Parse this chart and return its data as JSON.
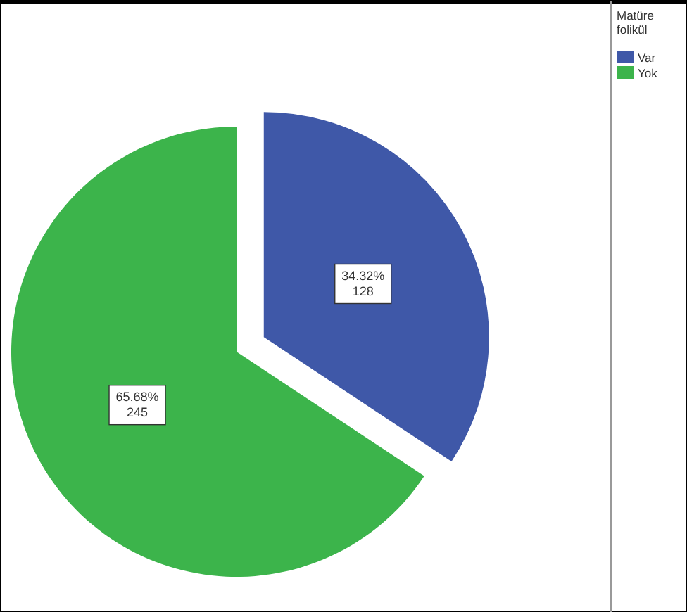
{
  "chart_data": {
    "type": "pie",
    "legend_title": "Matüre folikül",
    "categories": [
      "Var",
      "Yok"
    ],
    "values": [
      128,
      245
    ],
    "colors": [
      "#3f58a8",
      "#3cb44b"
    ],
    "value_labels": [
      "34.32%\n128",
      "65.68%\n245"
    ],
    "legend": "top right"
  }
}
